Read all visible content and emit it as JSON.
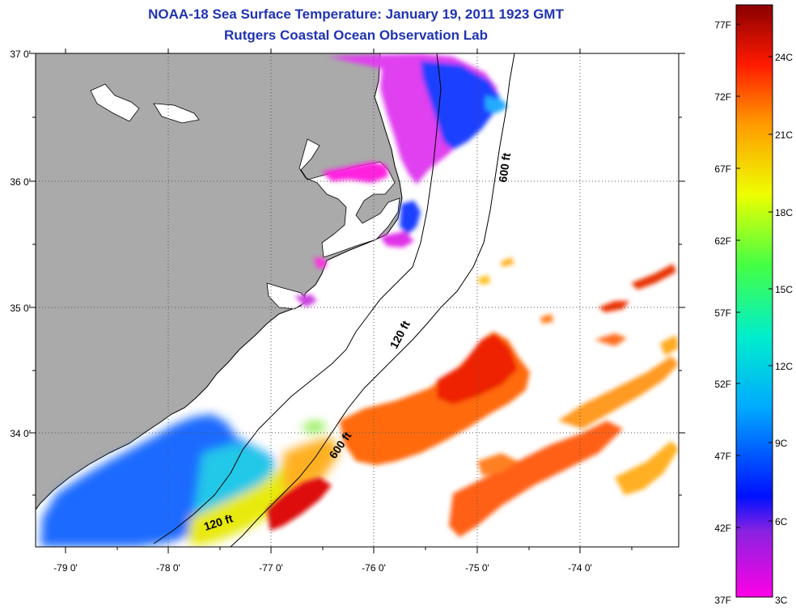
{
  "header": {
    "title": "NOAA-18 Sea Surface Temperature:  January 19, 2011 1923 GMT",
    "subtitle": "Rutgers Coastal Ocean Observation Lab"
  },
  "map": {
    "lat_labels": [
      "37 0'",
      "36 0'",
      "35 0'",
      "34 0'"
    ],
    "lon_labels": [
      "-79 0'",
      "-78 0'",
      "-77 0'",
      "-76 0'",
      "-75 0'",
      "-74 0'"
    ],
    "contours": {
      "c120_label_a": "120 ft",
      "c120_label_b": "120 ft",
      "c600_label_a": "600 ft",
      "c600_label_b": "600 ft"
    },
    "colors": {
      "land": "#aaaaaa",
      "ocean_background": "#ffffff",
      "cold": "#ff00ff",
      "cool": "#0044ff",
      "mild": "#ffee00",
      "warm": "#ff8800",
      "hot": "#e60000"
    }
  },
  "colorbar": {
    "f_labels": [
      "77F",
      "72F",
      "67F",
      "62F",
      "57F",
      "52F",
      "47F",
      "42F",
      "37F"
    ],
    "c_labels": [
      "24C",
      "21C",
      "18C",
      "15C",
      "12C",
      "9C",
      "6C",
      "3C"
    ]
  }
}
